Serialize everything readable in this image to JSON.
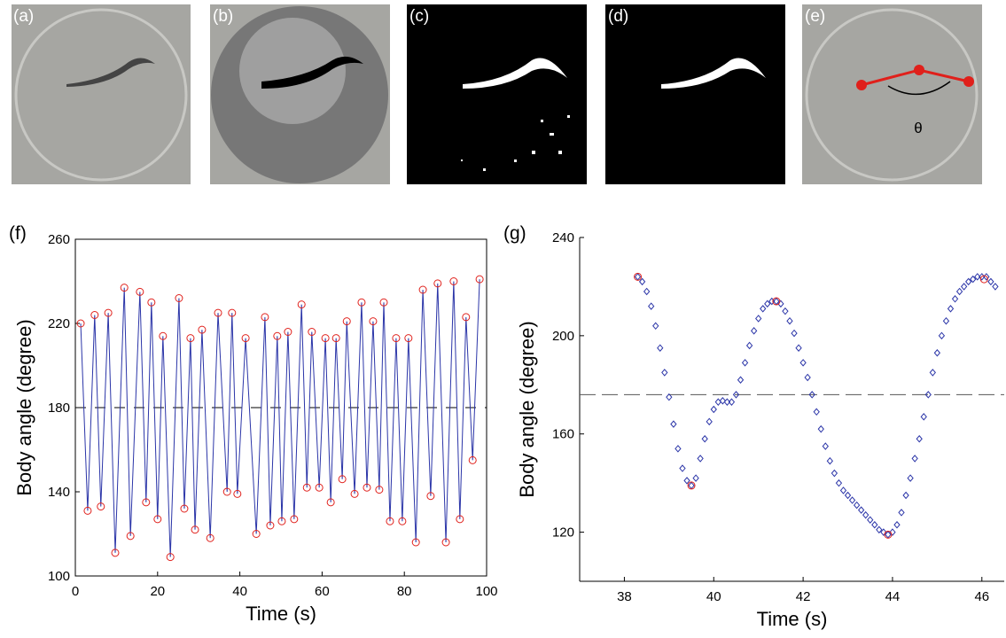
{
  "panels": [
    {
      "label": "(a)"
    },
    {
      "label": "(b)"
    },
    {
      "label": "(c)"
    },
    {
      "label": "(d)"
    },
    {
      "label": "(e)",
      "annotation": "θ"
    }
  ],
  "chart_data": [
    {
      "type": "line",
      "label": "(f)",
      "xlabel": "Time (s)",
      "ylabel": "Body angle (degree)",
      "xlim": [
        0,
        100
      ],
      "ylim": [
        100,
        260
      ],
      "xticks": [
        0,
        20,
        40,
        60,
        80,
        100
      ],
      "yticks": [
        100,
        140,
        180,
        220,
        260
      ],
      "box": true,
      "reference_line": 180,
      "x": [
        1.3,
        3.0,
        4.7,
        6.2,
        8.0,
        9.7,
        11.9,
        13.4,
        15.7,
        17.2,
        18.5,
        20.0,
        21.3,
        23.1,
        25.2,
        26.5,
        28.0,
        29.1,
        30.8,
        32.8,
        34.7,
        36.9,
        38.1,
        39.4,
        41.4,
        44.0,
        46.1,
        47.4,
        49.1,
        50.2,
        51.7,
        53.2,
        55.0,
        56.3,
        57.5,
        59.3,
        60.8,
        62.1,
        63.4,
        64.9,
        66.0,
        67.9,
        69.6,
        70.9,
        72.4,
        73.9,
        75.0,
        76.5,
        78.0,
        79.5,
        81.0,
        82.8,
        84.5,
        86.4,
        88.1,
        90.1,
        92.0,
        93.5,
        95.0,
        96.6,
        98.3
      ],
      "series": [
        {
          "color": "#2b35a8",
          "marker_color": "#e0201b",
          "values": [
            220,
            131,
            224,
            133,
            225,
            111,
            237,
            119,
            235,
            135,
            230,
            127,
            214,
            109,
            232,
            132,
            213,
            122,
            217,
            118,
            225,
            140,
            225,
            139,
            213,
            120,
            223,
            124,
            214,
            126,
            216,
            127,
            229,
            142,
            216,
            142,
            213,
            135,
            213,
            146,
            221,
            139,
            230,
            142,
            221,
            141,
            230,
            126,
            213,
            126,
            213,
            116,
            236,
            138,
            239,
            116,
            240,
            127,
            223,
            155,
            241
          ]
        }
      ]
    },
    {
      "type": "scatter",
      "label": "(g)",
      "xlabel": "Time (s)",
      "ylabel": "Body angle (degree)",
      "xlim": [
        37,
        46.5
      ],
      "ylim": [
        100,
        240
      ],
      "xticks": [
        38,
        40,
        42,
        44,
        46
      ],
      "yticks": [
        120,
        160,
        200,
        240
      ],
      "box": false,
      "reference_line": 176,
      "x": [
        38.3,
        38.4,
        38.5,
        38.6,
        38.7,
        38.8,
        38.9,
        39.0,
        39.1,
        39.2,
        39.3,
        39.4,
        39.5,
        39.6,
        39.7,
        39.8,
        39.9,
        40.0,
        40.1,
        40.2,
        40.3,
        40.4,
        40.5,
        40.6,
        40.7,
        40.8,
        40.9,
        41.0,
        41.1,
        41.2,
        41.3,
        41.4,
        41.5,
        41.6,
        41.7,
        41.8,
        41.9,
        42.0,
        42.1,
        42.2,
        42.3,
        42.4,
        42.5,
        42.6,
        42.7,
        42.8,
        42.9,
        43.0,
        43.1,
        43.2,
        43.3,
        43.4,
        43.5,
        43.6,
        43.7,
        43.8,
        43.9,
        44.0,
        44.1,
        44.2,
        44.3,
        44.4,
        44.5,
        44.6,
        44.7,
        44.8,
        44.9,
        45.0,
        45.1,
        45.2,
        45.3,
        45.4,
        45.5,
        45.6,
        45.7,
        45.8,
        45.9,
        46.0,
        46.1,
        46.2,
        46.3
      ],
      "series": [
        {
          "color": "#2b35a8",
          "values": [
            224,
            222,
            218,
            212,
            204,
            195,
            185,
            175,
            164,
            154,
            146,
            141,
            139,
            142,
            150,
            158,
            165,
            170,
            173,
            173.5,
            173,
            173,
            176,
            182,
            189,
            196,
            202,
            207,
            211,
            213,
            214,
            214,
            213,
            210,
            206,
            201,
            195,
            189,
            183,
            176,
            169,
            162,
            155,
            149,
            144,
            140,
            137,
            135,
            133,
            131,
            129,
            127,
            125,
            123,
            121,
            120,
            119,
            120,
            123,
            128,
            135,
            142,
            150,
            158,
            167,
            176,
            185,
            193,
            200,
            206,
            211,
            215,
            218,
            220,
            222,
            223,
            224,
            224,
            224,
            222,
            220
          ]
        }
      ],
      "highlights": {
        "color": "#e0201b",
        "x": [
          38.3,
          39.5,
          41.4,
          43.9,
          46.05
        ],
        "values": [
          224,
          139,
          214,
          119,
          223
        ]
      }
    }
  ]
}
